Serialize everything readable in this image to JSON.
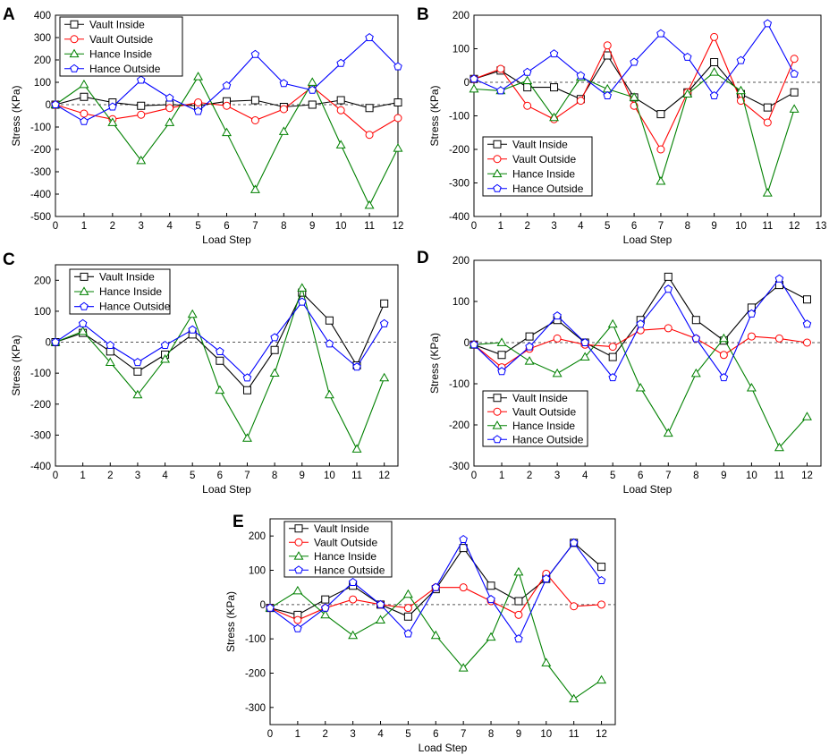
{
  "figure": {
    "description_free": true
  },
  "chart_data": [
    {
      "type": "line",
      "panel": "A",
      "xlabel": "Load Step",
      "ylabel": "Stress (KPa)",
      "xlim": [
        0,
        12
      ],
      "ylim": [
        -500,
        400
      ],
      "xticks": [
        0,
        1,
        2,
        3,
        4,
        5,
        6,
        7,
        8,
        9,
        10,
        11,
        12
      ],
      "yticks": [
        -500,
        -400,
        -300,
        -200,
        -100,
        0,
        100,
        200,
        300,
        400
      ],
      "zero_line": true,
      "legend_position": "top-left",
      "series": [
        {
          "name": "Vault Inside",
          "color": "#000000",
          "marker": "square",
          "x": [
            0,
            1,
            2,
            3,
            4,
            5,
            6,
            7,
            8,
            9,
            10,
            11,
            12
          ],
          "values": [
            0,
            35,
            10,
            -5,
            0,
            -5,
            15,
            20,
            -10,
            0,
            20,
            -15,
            10
          ]
        },
        {
          "name": "Vault Outside",
          "color": "#ff0000",
          "marker": "circle",
          "x": [
            0,
            1,
            2,
            3,
            4,
            5,
            6,
            7,
            8,
            9,
            10,
            11,
            12
          ],
          "values": [
            0,
            -40,
            -65,
            -45,
            -15,
            10,
            -5,
            -70,
            -20,
            80,
            -25,
            -135,
            -60
          ]
        },
        {
          "name": "Hance Inside",
          "color": "#008000",
          "marker": "triangle",
          "x": [
            0,
            1,
            2,
            3,
            4,
            5,
            6,
            7,
            8,
            9,
            10,
            11,
            12
          ],
          "values": [
            0,
            90,
            -80,
            -250,
            -80,
            125,
            -125,
            -380,
            -120,
            100,
            -180,
            -450,
            -195
          ]
        },
        {
          "name": "Hance Outside",
          "color": "#0000ff",
          "marker": "pentagon",
          "x": [
            0,
            1,
            2,
            3,
            4,
            5,
            6,
            7,
            8,
            9,
            10,
            11,
            12
          ],
          "values": [
            0,
            -75,
            -10,
            110,
            30,
            -30,
            85,
            225,
            95,
            65,
            185,
            300,
            170
          ]
        }
      ]
    },
    {
      "type": "line",
      "panel": "B",
      "xlabel": "Load Step",
      "ylabel": "Stress (KPa)",
      "xlim": [
        0,
        13
      ],
      "ylim": [
        -400,
        200
      ],
      "xticks": [
        0,
        1,
        2,
        3,
        4,
        5,
        6,
        7,
        8,
        9,
        10,
        11,
        12,
        13
      ],
      "yticks": [
        -400,
        -300,
        -200,
        -100,
        0,
        100,
        200
      ],
      "zero_line": true,
      "legend_position": "bottom-left",
      "series": [
        {
          "name": "Vault Inside",
          "color": "#000000",
          "marker": "square",
          "x": [
            0,
            1,
            2,
            3,
            4,
            5,
            6,
            7,
            8,
            9,
            10,
            11,
            12
          ],
          "values": [
            10,
            35,
            -15,
            -15,
            -50,
            80,
            -45,
            -95,
            -30,
            60,
            -35,
            -75,
            -30
          ]
        },
        {
          "name": "Vault Outside",
          "color": "#ff0000",
          "marker": "circle",
          "x": [
            0,
            1,
            2,
            3,
            4,
            5,
            6,
            7,
            8,
            9,
            10,
            11,
            12
          ],
          "values": [
            10,
            40,
            -70,
            -110,
            -55,
            110,
            -70,
            -200,
            -30,
            135,
            -55,
            -120,
            70
          ]
        },
        {
          "name": "Hance Inside",
          "color": "#008000",
          "marker": "triangle",
          "x": [
            0,
            1,
            2,
            3,
            4,
            5,
            6,
            7,
            8,
            9,
            10,
            11,
            12
          ],
          "values": [
            -20,
            -25,
            5,
            -105,
            15,
            -20,
            -45,
            -295,
            -35,
            30,
            -25,
            -330,
            -80
          ]
        },
        {
          "name": "Hance Outside",
          "color": "#0000ff",
          "marker": "pentagon",
          "x": [
            0,
            1,
            2,
            3,
            4,
            5,
            6,
            7,
            8,
            9,
            10,
            11,
            12
          ],
          "values": [
            10,
            -25,
            30,
            85,
            20,
            -40,
            60,
            145,
            75,
            -40,
            65,
            175,
            25
          ]
        }
      ]
    },
    {
      "type": "line",
      "panel": "C",
      "xlabel": "Load Step",
      "ylabel": "Stress (KPa)",
      "xlim": [
        0,
        12.5
      ],
      "ylim": [
        -400,
        250
      ],
      "xticks": [
        0,
        1,
        2,
        3,
        4,
        5,
        6,
        7,
        8,
        9,
        10,
        11,
        12
      ],
      "yticks": [
        -400,
        -300,
        -200,
        -100,
        0,
        100,
        200
      ],
      "zero_line": true,
      "legend_position": "top-left",
      "series": [
        {
          "name": "Vault Inside",
          "color": "#000000",
          "marker": "square",
          "x": [
            0,
            1,
            2,
            3,
            4,
            5,
            6,
            7,
            8,
            9,
            10,
            11,
            12
          ],
          "values": [
            0,
            30,
            -30,
            -95,
            -40,
            25,
            -60,
            -155,
            -25,
            160,
            70,
            -75,
            125
          ]
        },
        {
          "name": "Hance Inside",
          "color": "#008000",
          "marker": "triangle",
          "x": [
            0,
            1,
            2,
            3,
            4,
            5,
            6,
            7,
            8,
            9,
            10,
            11,
            12
          ],
          "values": [
            0,
            35,
            -65,
            -170,
            -55,
            90,
            -155,
            -310,
            -100,
            175,
            -170,
            -345,
            -115
          ]
        },
        {
          "name": "Hance Outside",
          "color": "#0000ff",
          "marker": "pentagon",
          "x": [
            0,
            1,
            2,
            3,
            4,
            5,
            6,
            7,
            8,
            9,
            10,
            11,
            12
          ],
          "values": [
            0,
            60,
            -10,
            -65,
            -10,
            40,
            -30,
            -115,
            15,
            130,
            -5,
            -80,
            60
          ]
        }
      ]
    },
    {
      "type": "line",
      "panel": "D",
      "xlabel": "Load Step",
      "ylabel": "Stress (KPa)",
      "xlim": [
        0,
        12.5
      ],
      "ylim": [
        -300,
        200
      ],
      "xticks": [
        0,
        1,
        2,
        3,
        4,
        5,
        6,
        7,
        8,
        9,
        10,
        11,
        12
      ],
      "yticks": [
        -300,
        -200,
        -100,
        0,
        100,
        200
      ],
      "zero_line": true,
      "legend_position": "bottom-left",
      "series": [
        {
          "name": "Vault Inside",
          "color": "#000000",
          "marker": "square",
          "x": [
            0,
            1,
            2,
            3,
            4,
            5,
            6,
            7,
            8,
            9,
            10,
            11,
            12
          ],
          "values": [
            -5,
            -30,
            15,
            55,
            0,
            -35,
            55,
            160,
            55,
            5,
            85,
            140,
            105
          ]
        },
        {
          "name": "Vault Outside",
          "color": "#ff0000",
          "marker": "circle",
          "x": [
            0,
            1,
            2,
            3,
            4,
            5,
            6,
            7,
            8,
            9,
            10,
            11,
            12
          ],
          "values": [
            -5,
            -60,
            -15,
            10,
            -5,
            -10,
            30,
            35,
            10,
            -30,
            15,
            10,
            0
          ]
        },
        {
          "name": "Hance Inside",
          "color": "#008000",
          "marker": "triangle",
          "x": [
            0,
            1,
            2,
            3,
            4,
            5,
            6,
            7,
            8,
            9,
            10,
            11,
            12
          ],
          "values": [
            -5,
            0,
            -45,
            -75,
            -35,
            45,
            -110,
            -220,
            -75,
            10,
            -110,
            -255,
            -180
          ]
        },
        {
          "name": "Hance Outside",
          "color": "#0000ff",
          "marker": "pentagon",
          "x": [
            0,
            1,
            2,
            3,
            4,
            5,
            6,
            7,
            8,
            9,
            10,
            11,
            12
          ],
          "values": [
            -5,
            -70,
            -10,
            65,
            0,
            -85,
            45,
            130,
            10,
            -85,
            70,
            155,
            45
          ]
        }
      ]
    },
    {
      "type": "line",
      "panel": "E",
      "xlabel": "Load Step",
      "ylabel": "Stress (KPa)",
      "xlim": [
        0,
        12.5
      ],
      "ylim": [
        -350,
        250
      ],
      "xticks": [
        0,
        1,
        2,
        3,
        4,
        5,
        6,
        7,
        8,
        9,
        10,
        11,
        12
      ],
      "yticks": [
        -300,
        -200,
        -100,
        0,
        100,
        200
      ],
      "zero_line": true,
      "legend_position": "top-left",
      "series": [
        {
          "name": "Vault Inside",
          "color": "#000000",
          "marker": "square",
          "x": [
            0,
            1,
            2,
            3,
            4,
            5,
            6,
            7,
            8,
            9,
            10,
            11,
            12
          ],
          "values": [
            -10,
            -30,
            15,
            55,
            0,
            -35,
            45,
            165,
            55,
            10,
            75,
            180,
            110
          ]
        },
        {
          "name": "Vault Outside",
          "color": "#ff0000",
          "marker": "circle",
          "x": [
            0,
            1,
            2,
            3,
            4,
            5,
            6,
            7,
            8,
            9,
            10,
            11,
            12
          ],
          "values": [
            -10,
            -45,
            -10,
            15,
            0,
            -10,
            50,
            50,
            10,
            -30,
            90,
            -5,
            0
          ]
        },
        {
          "name": "Hance Inside",
          "color": "#008000",
          "marker": "triangle",
          "x": [
            0,
            1,
            2,
            3,
            4,
            5,
            6,
            7,
            8,
            9,
            10,
            11,
            12
          ],
          "values": [
            -10,
            40,
            -30,
            -90,
            -45,
            30,
            -90,
            -185,
            -95,
            95,
            -170,
            -275,
            -220
          ]
        },
        {
          "name": "Hance Outside",
          "color": "#0000ff",
          "marker": "pentagon",
          "x": [
            0,
            1,
            2,
            3,
            4,
            5,
            6,
            7,
            8,
            9,
            10,
            11,
            12
          ],
          "values": [
            -10,
            -70,
            -10,
            65,
            0,
            -85,
            50,
            190,
            15,
            -100,
            75,
            180,
            70
          ]
        }
      ]
    }
  ]
}
